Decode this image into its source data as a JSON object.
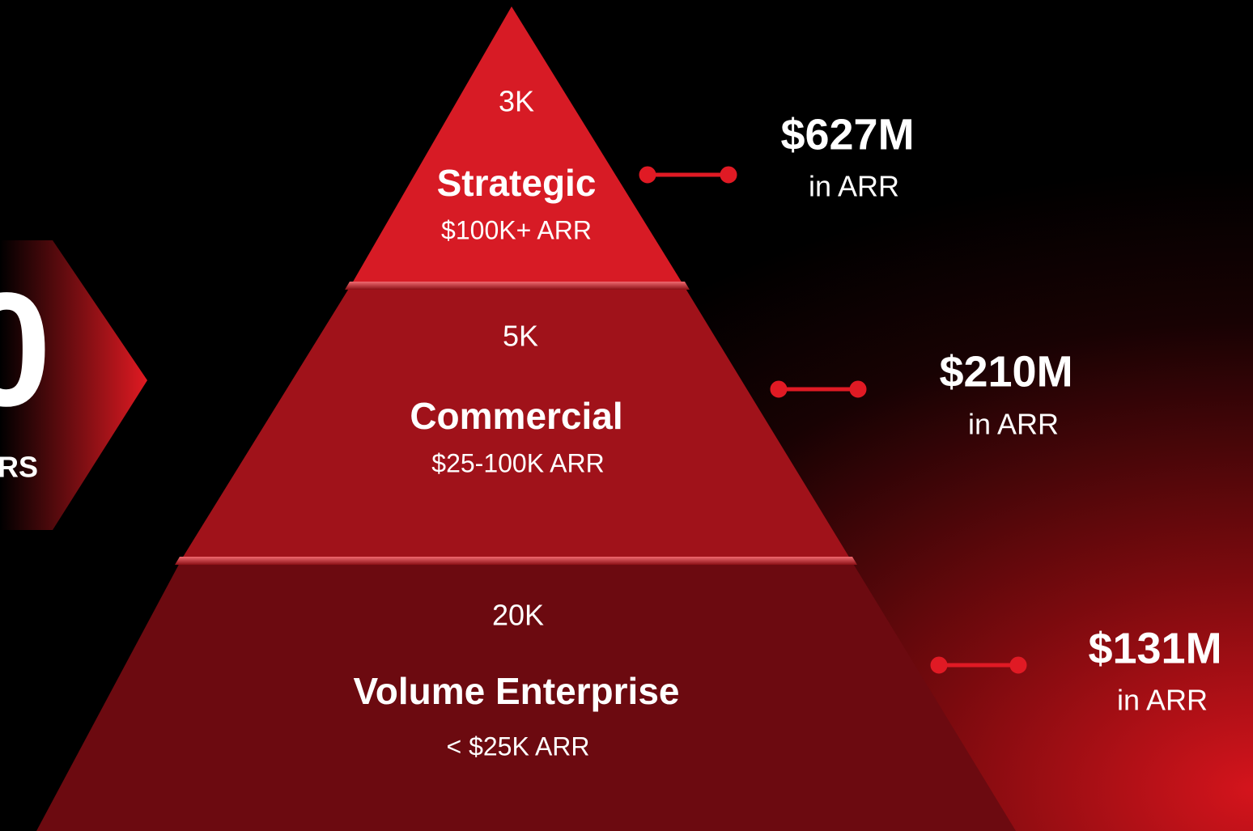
{
  "left_badge": {
    "number": "0",
    "caption": "RS"
  },
  "tiers": [
    {
      "count": "3K",
      "name": "Strategic",
      "range": "$100K+ ARR",
      "arr": "$627M",
      "arr_note": "in ARR"
    },
    {
      "count": "5K",
      "name": "Commercial",
      "range": "$25-100K ARR",
      "arr": "$210M",
      "arr_note": "in ARR"
    },
    {
      "count": "20K",
      "name": "Volume Enterprise",
      "range": "< $25K ARR",
      "arr": "$131M",
      "arr_note": "in ARR"
    }
  ]
}
